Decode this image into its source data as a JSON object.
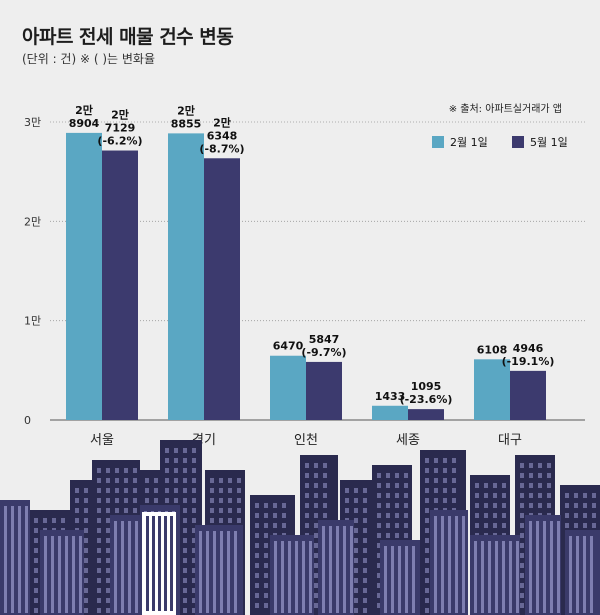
{
  "title": "아파트 전세 매물 건수 변동",
  "subtitle": "(단위 : 건) ※ ( )는 변화율",
  "source": "※ 출처: 아파트실거래가 앱",
  "colors": {
    "series_feb": "#5aa7c3",
    "series_may": "#3c3a6e",
    "grid": "#9a9a9a",
    "text": "#111111",
    "background": "#eeeeee",
    "skyline_dark": "#2a2a4e",
    "skyline_mid": "#3a3a6a",
    "skyline_window": "#9b9bcf"
  },
  "chart_data": {
    "type": "bar",
    "title": "아파트 전세 매물 건수 변동",
    "subtitle": "(단위 : 건) ※ ( )는 변화율",
    "categories": [
      "서울",
      "경기",
      "인천",
      "세종",
      "대구"
    ],
    "series": [
      {
        "name": "2월 1일",
        "values": [
          28904,
          28855,
          6470,
          1433,
          6108
        ],
        "labels": [
          [
            "2만",
            "8904"
          ],
          [
            "2만",
            "8855"
          ],
          [
            "6470"
          ],
          [
            "1433"
          ],
          [
            "6108"
          ]
        ]
      },
      {
        "name": "5월 1일",
        "values": [
          27129,
          26348,
          5847,
          1095,
          4946
        ],
        "labels": [
          [
            "2만",
            "7129",
            "(-6.2%)"
          ],
          [
            "2만",
            "6348",
            "(-8.7%)"
          ],
          [
            "5847",
            "(-9.7%)"
          ],
          [
            "1095",
            "(-23.6%)"
          ],
          [
            "4946",
            "(-19.1%)"
          ]
        ]
      }
    ],
    "yticks": [
      0,
      10000,
      20000,
      30000
    ],
    "ytick_labels": [
      "0",
      "1만",
      "2만",
      "3만"
    ],
    "ylim": [
      0,
      30000
    ],
    "grid": true,
    "legend": "top-right"
  }
}
